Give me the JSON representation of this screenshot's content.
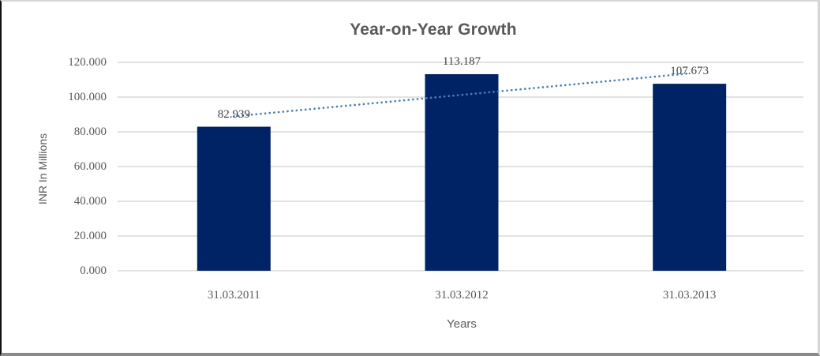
{
  "chart_data": {
    "type": "bar",
    "title": "Year-on-Year Growth",
    "xlabel": "Years",
    "ylabel": "INR In Millions",
    "categories": [
      "31.03.2011",
      "31.03.2012",
      "31.03.2013"
    ],
    "values": [
      82.939,
      113.187,
      107.673
    ],
    "data_labels": [
      "82.939",
      "113.187",
      "107.673"
    ],
    "y_ticks": [
      "0.000",
      "20.000",
      "40.000",
      "60.000",
      "80.000",
      "100.000",
      "120.000"
    ],
    "y_tick_step": 20,
    "ylim": [
      0,
      120
    ],
    "grid": true,
    "legend": "none",
    "trendline": {
      "type": "linear",
      "style": "dotted",
      "color": "#4a7ebb"
    },
    "colors": {
      "bar": "#002366",
      "gridline": "#d9d9d9",
      "title_text": "#595959",
      "axis_text": "#595959",
      "data_label_text": "#404040"
    }
  }
}
